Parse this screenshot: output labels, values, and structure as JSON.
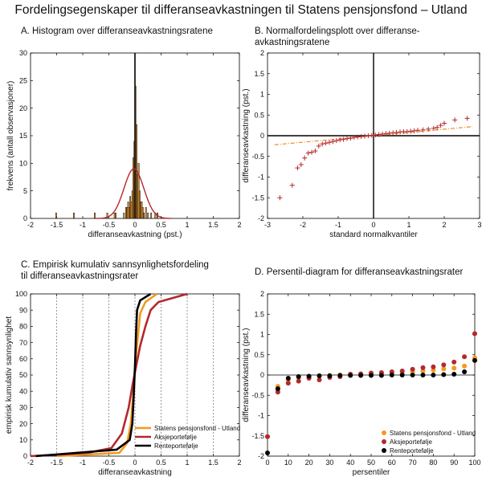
{
  "figure_title": "Fordelingsegenskaper til differanseavkastningen til Statens pensjonsfond – Utland",
  "colors": {
    "orange": "#f39a1e",
    "orange_fill": "#f7a43a",
    "red": "#b3282d",
    "black": "#000000",
    "dashed_orange": "#f08a24"
  },
  "chart_data": [
    {
      "id": "A",
      "type": "bar",
      "title": "A. Histogram over differanseavkastningsratene",
      "xlabel": "differanseavkastning (pst.)",
      "ylabel": "frekvens (antall observasjoner)",
      "xlim": [
        -2,
        2
      ],
      "ylim": [
        0,
        30
      ],
      "xticks": [
        "-2",
        "-1.5",
        "-1",
        "-0.5",
        "0",
        "0.5",
        "1",
        "1.5",
        "2"
      ],
      "yticks": [
        "0",
        "5",
        "10",
        "15",
        "20",
        "25",
        "30"
      ],
      "bin_width": 0.02,
      "bins": [
        [
          -1.52,
          1
        ],
        [
          -1.18,
          1
        ],
        [
          -0.78,
          1
        ],
        [
          -0.54,
          1
        ],
        [
          -0.4,
          1
        ],
        [
          -0.38,
          1
        ],
        [
          -0.22,
          1
        ],
        [
          -0.18,
          2
        ],
        [
          -0.16,
          2
        ],
        [
          -0.14,
          3
        ],
        [
          -0.12,
          2
        ],
        [
          -0.1,
          4
        ],
        [
          -0.08,
          3
        ],
        [
          -0.06,
          5
        ],
        [
          -0.04,
          11
        ],
        [
          -0.02,
          14
        ],
        [
          0,
          24
        ],
        [
          0.02,
          17
        ],
        [
          0.04,
          8
        ],
        [
          0.06,
          10
        ],
        [
          0.08,
          5
        ],
        [
          0.1,
          3
        ],
        [
          0.12,
          3
        ],
        [
          0.14,
          2
        ],
        [
          0.16,
          1
        ],
        [
          0.2,
          2
        ],
        [
          0.24,
          1
        ],
        [
          0.3,
          1
        ],
        [
          0.38,
          1
        ],
        [
          0.42,
          1
        ]
      ],
      "normal_curve": {
        "mean": -0.02,
        "peak": 9,
        "sd": 0.19
      }
    },
    {
      "id": "B",
      "type": "scatter",
      "title": "B. Normalfordelingsplott over differanse-avkastningsratene",
      "title_lines": [
        "B. Normalfordelingsplott over differanse-",
        "avkastningsratene"
      ],
      "xlabel": "standard normalkvantiler",
      "ylabel": "differanseavkastning (pst.)",
      "xlim": [
        -3,
        3
      ],
      "ylim": [
        -2,
        2
      ],
      "xticks": [
        "-3",
        "-2",
        "-1",
        "0",
        "1",
        "2",
        "3"
      ],
      "yticks": [
        "-2",
        "-1.5",
        "-1",
        "-0.5",
        "0",
        "0.5",
        "1",
        "1.5",
        "2"
      ],
      "points": [
        [
          -2.65,
          -1.5
        ],
        [
          -2.3,
          -1.2
        ],
        [
          -2.15,
          -0.78
        ],
        [
          -2.05,
          -0.7
        ],
        [
          -1.95,
          -0.54
        ],
        [
          -1.85,
          -0.42
        ],
        [
          -1.75,
          -0.4
        ],
        [
          -1.65,
          -0.37
        ],
        [
          -1.55,
          -0.25
        ],
        [
          -1.45,
          -0.2
        ],
        [
          -1.35,
          -0.18
        ],
        [
          -1.25,
          -0.16
        ],
        [
          -1.15,
          -0.14
        ],
        [
          -1.05,
          -0.12
        ],
        [
          -0.95,
          -0.1
        ],
        [
          -0.85,
          -0.09
        ],
        [
          -0.75,
          -0.07
        ],
        [
          -0.65,
          -0.06
        ],
        [
          -0.55,
          -0.04
        ],
        [
          -0.45,
          -0.03
        ],
        [
          -0.35,
          -0.02
        ],
        [
          -0.25,
          -0.01
        ],
        [
          -0.15,
          0
        ],
        [
          -0.05,
          0.01
        ],
        [
          0.05,
          0.02
        ],
        [
          0.15,
          0.03
        ],
        [
          0.25,
          0.04
        ],
        [
          0.35,
          0.05
        ],
        [
          0.45,
          0.06
        ],
        [
          0.55,
          0.07
        ],
        [
          0.65,
          0.08
        ],
        [
          0.75,
          0.09
        ],
        [
          0.85,
          0.1
        ],
        [
          0.95,
          0.1
        ],
        [
          1.05,
          0.11
        ],
        [
          1.15,
          0.12
        ],
        [
          1.25,
          0.13
        ],
        [
          1.4,
          0.14
        ],
        [
          1.55,
          0.16
        ],
        [
          1.7,
          0.18
        ],
        [
          1.8,
          0.2
        ],
        [
          1.9,
          0.25
        ],
        [
          2.0,
          0.3
        ],
        [
          2.3,
          0.38
        ],
        [
          2.65,
          0.42
        ]
      ],
      "reference_line": [
        [
          -2.8,
          -0.22
        ],
        [
          2.8,
          0.22
        ]
      ]
    },
    {
      "id": "C",
      "type": "line",
      "title": "C. Empirisk kumulativ sannsynlighetsfordeling til differanseavkastningsrater",
      "title_lines": [
        "C. Empirisk kumulativ sannsynlighetsfordeling",
        "til differanseavkastningsrater"
      ],
      "xlabel": "differanseavkastning",
      "ylabel": "empirisk kumulativ sannsynlighet",
      "xlim": [
        -2,
        2
      ],
      "ylim": [
        0,
        100
      ],
      "xticks": [
        "-2",
        "-1.5",
        "-1",
        "-0.5",
        "0",
        "0.5",
        "1",
        "1.5",
        "2"
      ],
      "yticks": [
        "0",
        "10",
        "20",
        "30",
        "40",
        "50",
        "60",
        "70",
        "80",
        "90",
        "100"
      ],
      "legend_position": "bottom-right",
      "series": [
        {
          "name": "Statens pensjonsfond - Utland",
          "color": "orange",
          "points": [
            [
              -1.5,
              0
            ],
            [
              -0.3,
              2
            ],
            [
              -0.15,
              8
            ],
            [
              -0.08,
              20
            ],
            [
              -0.04,
              35
            ],
            [
              -0.01,
              50
            ],
            [
              0.02,
              62
            ],
            [
              0.06,
              75
            ],
            [
              0.1,
              88
            ],
            [
              0.2,
              95
            ],
            [
              0.42,
              100
            ]
          ]
        },
        {
          "name": "Aksjeportefølje",
          "color": "red",
          "points": [
            [
              -2,
              0
            ],
            [
              -0.9,
              2
            ],
            [
              -0.45,
              5
            ],
            [
              -0.25,
              14
            ],
            [
              -0.12,
              30
            ],
            [
              -0.04,
              45
            ],
            [
              0.02,
              55
            ],
            [
              0.1,
              68
            ],
            [
              0.2,
              80
            ],
            [
              0.3,
              90
            ],
            [
              0.45,
              95
            ],
            [
              1.0,
              100
            ]
          ]
        },
        {
          "name": "Renteportefølje",
          "color": "black",
          "points": [
            [
              -1.9,
              0
            ],
            [
              -0.35,
              4
            ],
            [
              -0.1,
              10
            ],
            [
              -0.05,
              20
            ],
            [
              -0.02,
              40
            ],
            [
              0.0,
              55
            ],
            [
              0.02,
              75
            ],
            [
              0.04,
              90
            ],
            [
              0.1,
              96
            ],
            [
              0.3,
              100
            ]
          ]
        }
      ]
    },
    {
      "id": "D",
      "type": "scatter",
      "title": "D. Persentil-diagram for differanseavkastningsrater",
      "xlabel": "persentiler",
      "ylabel": "differanseavkastning (pst.)",
      "xlim": [
        0,
        100
      ],
      "ylim": [
        -2,
        2
      ],
      "xticks": [
        "0",
        "10",
        "20",
        "30",
        "40",
        "50",
        "60",
        "70",
        "80",
        "90",
        "100"
      ],
      "yticks": [
        "-2",
        "-1.5",
        "-1",
        "-0.5",
        "0",
        "0.5",
        "1",
        "1.5",
        "2"
      ],
      "legend_position": "bottom-right",
      "series": [
        {
          "name": "Statens pensjonsfond - Utland",
          "color": "orange",
          "points": [
            [
              0,
              -1.52
            ],
            [
              5,
              -0.28
            ],
            [
              10,
              -0.12
            ],
            [
              15,
              -0.06
            ],
            [
              20,
              -0.04
            ],
            [
              25,
              -0.02
            ],
            [
              30,
              -0.01
            ],
            [
              35,
              0
            ],
            [
              40,
              0.01
            ],
            [
              45,
              0.02
            ],
            [
              50,
              0.03
            ],
            [
              55,
              0.04
            ],
            [
              60,
              0.05
            ],
            [
              65,
              0.07
            ],
            [
              70,
              0.08
            ],
            [
              75,
              0.1
            ],
            [
              80,
              0.12
            ],
            [
              85,
              0.15
            ],
            [
              90,
              0.17
            ],
            [
              95,
              0.22
            ],
            [
              100,
              0.42
            ]
          ]
        },
        {
          "name": "Aksjeportefølje",
          "color": "red",
          "points": [
            [
              0,
              -1.52
            ],
            [
              5,
              -0.42
            ],
            [
              10,
              -0.2
            ],
            [
              15,
              -0.15
            ],
            [
              20,
              -0.08
            ],
            [
              25,
              -0.12
            ],
            [
              30,
              -0.06
            ],
            [
              35,
              -0.04
            ],
            [
              40,
              0.02
            ],
            [
              45,
              0.03
            ],
            [
              50,
              0.05
            ],
            [
              55,
              0.06
            ],
            [
              60,
              0.08
            ],
            [
              65,
              0.1
            ],
            [
              70,
              0.14
            ],
            [
              75,
              0.18
            ],
            [
              80,
              0.2
            ],
            [
              85,
              0.25
            ],
            [
              90,
              0.32
            ],
            [
              95,
              0.45
            ],
            [
              100,
              1.02
            ]
          ]
        },
        {
          "name": "Renteportefølje",
          "color": "black",
          "points": [
            [
              0,
              -1.92
            ],
            [
              5,
              -0.34
            ],
            [
              10,
              -0.08
            ],
            [
              15,
              -0.04
            ],
            [
              20,
              -0.03
            ],
            [
              25,
              -0.02
            ],
            [
              30,
              -0.02
            ],
            [
              35,
              -0.01
            ],
            [
              40,
              -0.01
            ],
            [
              45,
              -0.01
            ],
            [
              50,
              -0.01
            ],
            [
              55,
              -0.01
            ],
            [
              60,
              0
            ],
            [
              65,
              0
            ],
            [
              70,
              0
            ],
            [
              75,
              0
            ],
            [
              80,
              0
            ],
            [
              85,
              0.01
            ],
            [
              90,
              0.02
            ],
            [
              95,
              0.08
            ],
            [
              100,
              0.36
            ]
          ]
        }
      ]
    }
  ]
}
